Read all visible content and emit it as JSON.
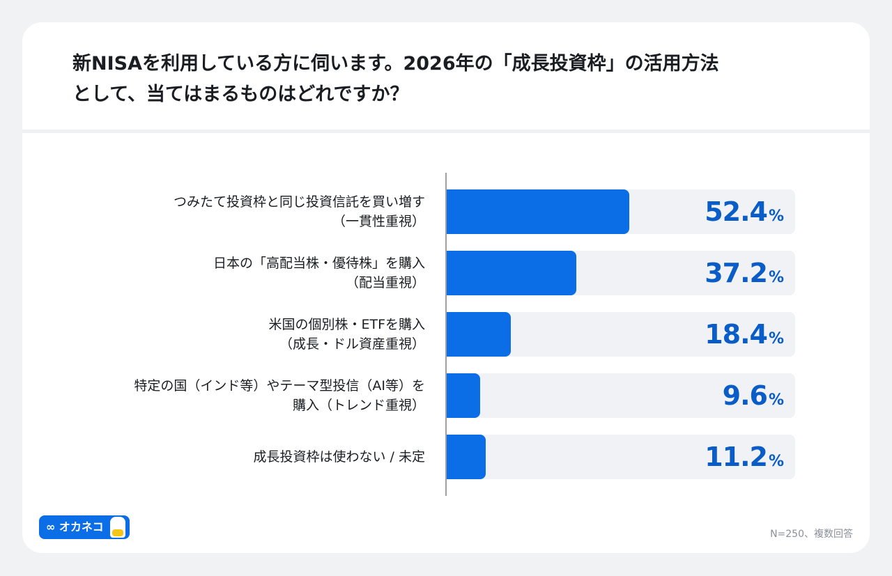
{
  "title_lines": [
    "新NISAを利用している方に伺います。2026年の「成長投資枠」の活用方法",
    "として、当てはまるものはどれですか？"
  ],
  "chart_data": {
    "type": "bar",
    "orientation": "horizontal",
    "categories": [
      [
        "つみたて投資枠と同じ投資信託を買い増す",
        "（一貫性重視）"
      ],
      [
        "日本の「高配当株・優待株」を購入",
        "（配当重視）"
      ],
      [
        "米国の個別株・ETFを購入",
        "（成長・ドル資産重視）"
      ],
      [
        "特定の国（インド等）やテーマ型投信（AI等）を",
        "購入（トレンド重視）"
      ],
      [
        "成長投資枠は使わない / 未定"
      ]
    ],
    "values": [
      52.4,
      37.2,
      18.4,
      9.6,
      11.2
    ],
    "value_labels": [
      "52.4",
      "37.2",
      "18.4",
      "9.6",
      "11.2"
    ],
    "unit": "%",
    "xlim": [
      0,
      100
    ],
    "colors": {
      "bar": "#0b6ee6",
      "track": "#f0f2f5",
      "value_text": "#0a5cc7"
    }
  },
  "footer": {
    "logo_text": "∞ オカネコ",
    "note": "N=250、複数回答"
  }
}
